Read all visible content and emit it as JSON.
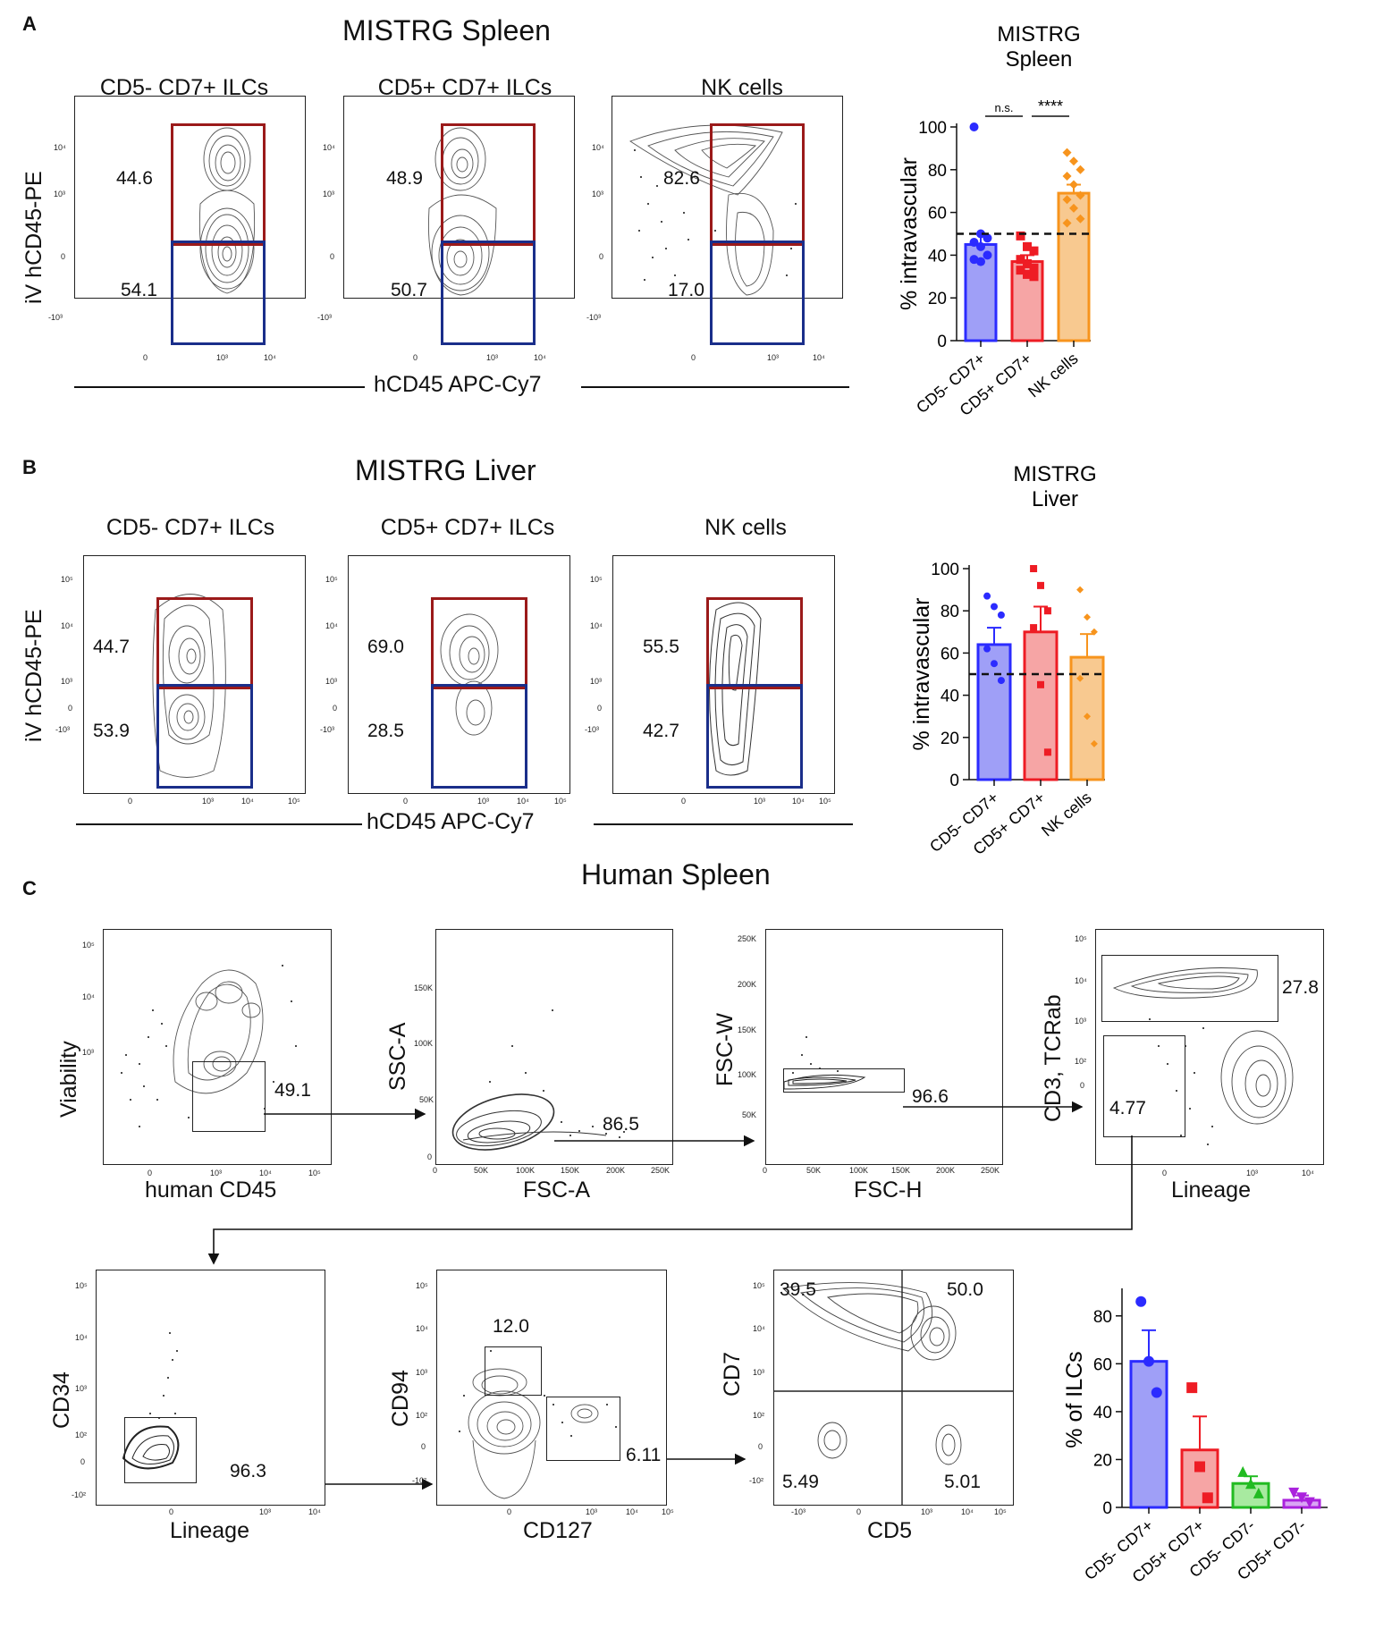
{
  "panels": {
    "A": {
      "letter": "A",
      "title": "MISTRG Spleen",
      "plot_titles": [
        "CD5- CD7+ ILCs",
        "CD5+ CD7+ ILCs",
        "NK cells"
      ],
      "y_label": "iV hCD45-PE",
      "x_label": "hCD45 APC-Cy7",
      "gate_values": [
        {
          "top": "44.6",
          "bottom": "54.1"
        },
        {
          "top": "48.9",
          "bottom": "50.7"
        },
        {
          "top": "82.6",
          "bottom": "17.0"
        }
      ]
    },
    "B": {
      "letter": "B",
      "title": "MISTRG Liver",
      "plot_titles": [
        "CD5- CD7+ ILCs",
        "CD5+ CD7+ ILCs",
        "NK cells"
      ],
      "y_label": "iV hCD45-PE",
      "x_label": "hCD45 APC-Cy7",
      "gate_values": [
        {
          "top": "44.7",
          "bottom": "53.9"
        },
        {
          "top": "69.0",
          "bottom": "28.5"
        },
        {
          "top": "55.5",
          "bottom": "42.7"
        }
      ]
    },
    "C": {
      "letter": "C",
      "title": "Human Spleen",
      "gating": [
        {
          "x_label": "human CD45",
          "y_label": "Viability",
          "values": [
            "49.1"
          ]
        },
        {
          "x_label": "FSC-A",
          "y_label": "SSC-A",
          "values": [
            "86.5"
          ]
        },
        {
          "x_label": "FSC-H",
          "y_label": "FSC-W",
          "values": [
            "96.6"
          ]
        },
        {
          "x_label": "Lineage",
          "y_label": "CD3, TCRab",
          "values": [
            "27.8",
            "4.77"
          ]
        },
        {
          "x_label": "Lineage",
          "y_label": "CD34",
          "values": [
            "96.3"
          ]
        },
        {
          "x_label": "CD127",
          "y_label": "CD94",
          "values": [
            "12.0",
            "6.11"
          ]
        },
        {
          "x_label": "CD5",
          "y_label": "CD7",
          "values": [
            "39.5",
            "50.0",
            "5.49",
            "5.01"
          ]
        }
      ]
    }
  },
  "tick_labels": {
    "log_y": [
      "10⁴",
      "10³",
      "0",
      "-10³"
    ],
    "log_y5": [
      "10⁵",
      "10⁴",
      "10³",
      "0",
      "-10³"
    ],
    "log_x": [
      "0",
      "10³",
      "10⁴"
    ],
    "log_x5": [
      "0",
      "10³",
      "10⁴",
      "10⁵"
    ],
    "scatter": [
      "0",
      "50K",
      "100K",
      "150K",
      "200K",
      "250K"
    ],
    "log_yC": [
      "10⁵",
      "10⁴",
      "10³",
      "10²",
      "0",
      "-10²"
    ],
    "log_xC": [
      "0",
      "10³",
      "10⁴",
      "10⁵"
    ],
    "log_xCD5": [
      "-10³",
      "0",
      "10³",
      "10⁴",
      "10⁵"
    ]
  },
  "chart_data": [
    {
      "type": "bar",
      "title": "MISTRG Spleen",
      "ylabel": "% intravascular",
      "xlabel": "",
      "ylim": [
        0,
        100
      ],
      "yticks": [
        0,
        20,
        40,
        60,
        80,
        100
      ],
      "categories": [
        "CD5- CD7+",
        "CD5+ CD7+",
        "NK cells"
      ],
      "values": [
        45,
        37,
        69
      ],
      "errors": [
        5,
        3,
        4
      ],
      "colors": [
        "#2b2bff",
        "#ee1c24",
        "#f7941d"
      ],
      "fills": [
        "#9f9ff7",
        "#f6a5a5",
        "#f8c990"
      ],
      "points": [
        [
          100,
          50,
          48,
          46,
          44,
          40,
          38,
          37
        ],
        [
          49,
          44,
          42,
          38,
          36,
          34,
          33,
          31,
          30
        ],
        [
          88,
          84,
          80,
          77,
          73,
          68,
          66,
          62,
          57,
          55
        ]
      ],
      "reference_line": 50,
      "significance": [
        {
          "pair": [
            0,
            1
          ],
          "label": "n.s."
        },
        {
          "pair": [
            1,
            2
          ],
          "label": "****"
        }
      ]
    },
    {
      "type": "bar",
      "title": "MISTRG Liver",
      "ylabel": "% intravascular",
      "xlabel": "",
      "ylim": [
        0,
        100
      ],
      "yticks": [
        0,
        20,
        40,
        60,
        80,
        100
      ],
      "categories": [
        "CD5- CD7+",
        "CD5+ CD7+",
        "NK cells"
      ],
      "values": [
        64,
        70,
        58
      ],
      "errors": [
        8,
        12,
        11
      ],
      "colors": [
        "#2b2bff",
        "#ee1c24",
        "#f7941d"
      ],
      "fills": [
        "#9f9ff7",
        "#f6a5a5",
        "#f8c990"
      ],
      "points": [
        [
          87,
          82,
          78,
          62,
          55,
          47
        ],
        [
          100,
          92,
          80,
          72,
          45,
          13
        ],
        [
          90,
          77,
          70,
          48,
          30,
          17
        ]
      ],
      "reference_line": 50,
      "significance": []
    },
    {
      "type": "bar",
      "title": "",
      "ylabel": "% of ILCs",
      "xlabel": "",
      "ylim": [
        0,
        90
      ],
      "yticks": [
        0,
        20,
        40,
        60,
        80
      ],
      "categories": [
        "CD5- CD7+",
        "CD5+ CD7+",
        "CD5- CD7-",
        "CD5+ CD7-"
      ],
      "values": [
        61,
        24,
        10,
        3
      ],
      "errors": [
        13,
        14,
        3,
        2
      ],
      "colors": [
        "#2b2bff",
        "#ee1c24",
        "#22bb22",
        "#aa22dd"
      ],
      "fills": [
        "#9f9ff7",
        "#f6a5a5",
        "#a8eaa0",
        "#d9a5f4"
      ],
      "points": [
        [
          86,
          61,
          48
        ],
        [
          50,
          17,
          4
        ],
        [
          15,
          10,
          6
        ],
        [
          6,
          4,
          2
        ]
      ],
      "reference_line": null,
      "significance": []
    }
  ]
}
